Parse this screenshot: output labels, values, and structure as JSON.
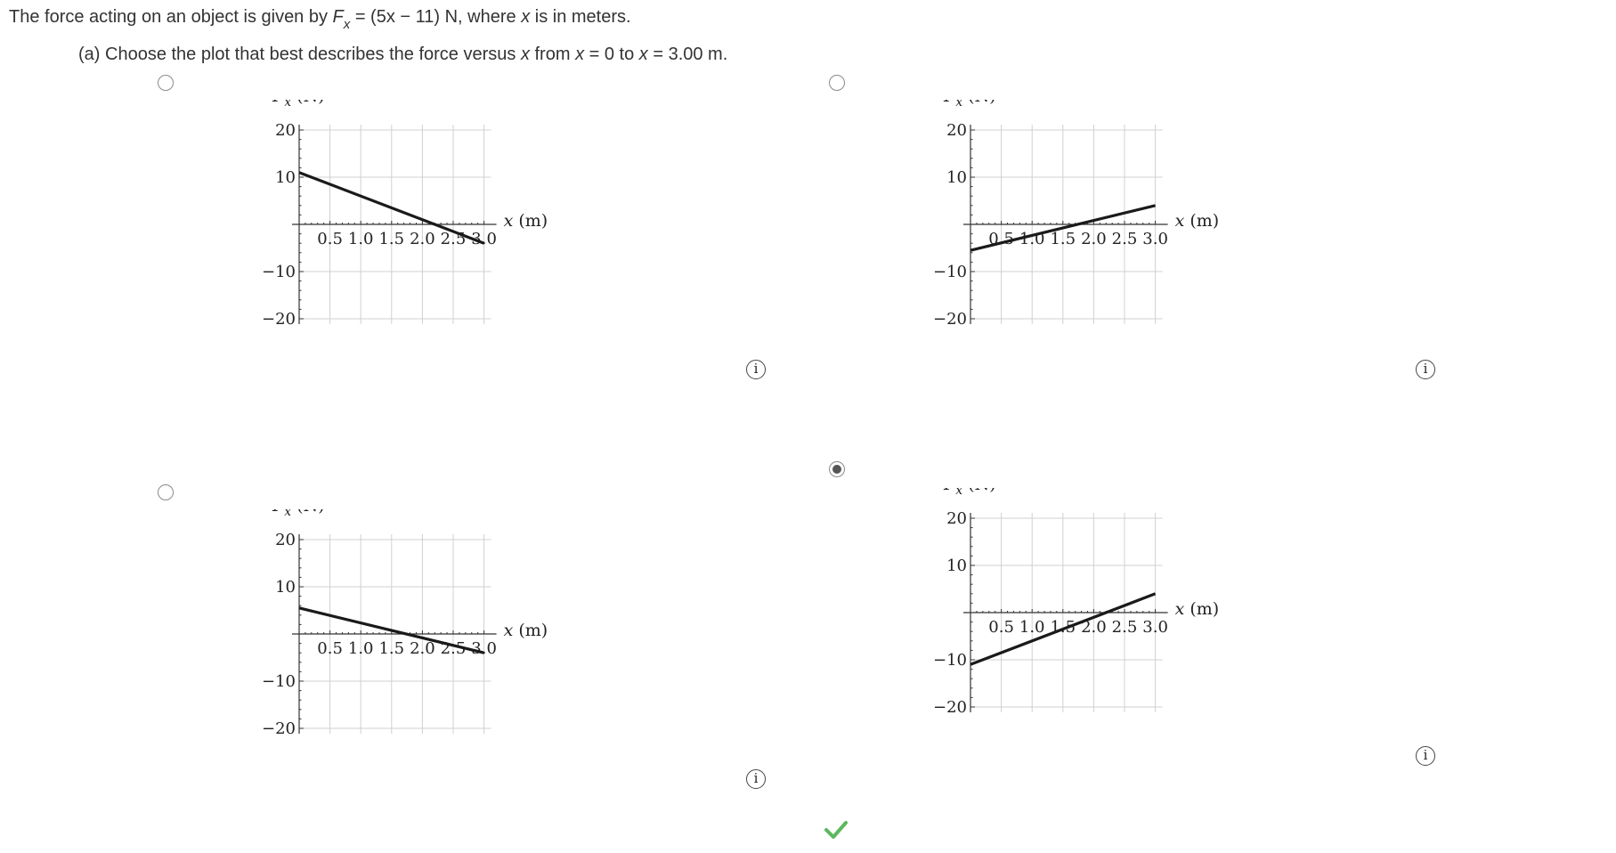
{
  "problem": {
    "statement_prefix": "The force acting on an object is given by ",
    "force_symbol": "F",
    "force_subscript": "x",
    "equation": " = (5x − 11) N, where ",
    "var": "x",
    "statement_suffix": " is in meters.",
    "question_prefix": "(a) Choose the plot that best describes the force versus ",
    "question_mid1": " from ",
    "question_mid2": " = 0 to ",
    "question_suffix": " = 3.00 m."
  },
  "answer": {
    "selected_option": 4,
    "feedback_icon": "checkmark-icon",
    "feedback_color": "#5cb85c"
  },
  "info_icon_glyph": "i",
  "chart_data": [
    {
      "option": 1,
      "type": "line",
      "selected": false,
      "ylabel_symbol": "F",
      "ylabel_sub": "x",
      "ylabel_unit": " (N)",
      "xlabel": "x (m)",
      "xlim": [
        0,
        3
      ],
      "ylim": [
        -20,
        20
      ],
      "xticks": [
        "0.5",
        "1.0",
        "1.5",
        "2.0",
        "2.5",
        "3.0"
      ],
      "yticks": [
        "20",
        "10",
        "−10",
        "−20"
      ],
      "grid": true,
      "series": [
        {
          "x": [
            0,
            3
          ],
          "y": [
            11,
            -4
          ]
        }
      ]
    },
    {
      "option": 2,
      "type": "line",
      "selected": false,
      "ylabel_symbol": "F",
      "ylabel_sub": "x",
      "ylabel_unit": " (N)",
      "xlabel": "x (m)",
      "xlim": [
        0,
        3
      ],
      "ylim": [
        -20,
        20
      ],
      "xticks": [
        "0.5",
        "1.0",
        "1.5",
        "2.0",
        "2.5",
        "3.0"
      ],
      "yticks": [
        "20",
        "10",
        "−10",
        "−20"
      ],
      "grid": true,
      "series": [
        {
          "x": [
            0,
            3
          ],
          "y": [
            -5.5,
            4
          ]
        }
      ]
    },
    {
      "option": 3,
      "type": "line",
      "selected": false,
      "ylabel_symbol": "F",
      "ylabel_sub": "x",
      "ylabel_unit": " (N)",
      "xlabel": "x (m)",
      "xlim": [
        0,
        3
      ],
      "ylim": [
        -20,
        20
      ],
      "xticks": [
        "0.5",
        "1.0",
        "1.5",
        "2.0",
        "2.5",
        "3.0"
      ],
      "yticks": [
        "20",
        "10",
        "−10",
        "−20"
      ],
      "grid": true,
      "series": [
        {
          "x": [
            0,
            3
          ],
          "y": [
            5.5,
            -4
          ]
        }
      ]
    },
    {
      "option": 4,
      "type": "line",
      "selected": true,
      "ylabel_symbol": "F",
      "ylabel_sub": "x",
      "ylabel_unit": " (N)",
      "xlabel": "x (m)",
      "xlim": [
        0,
        3
      ],
      "ylim": [
        -20,
        20
      ],
      "xticks": [
        "0.5",
        "1.0",
        "1.5",
        "2.0",
        "2.5",
        "3.0"
      ],
      "yticks": [
        "20",
        "10",
        "−10",
        "−20"
      ],
      "grid": true,
      "series": [
        {
          "x": [
            0,
            3
          ],
          "y": [
            -11,
            4
          ]
        }
      ]
    }
  ]
}
